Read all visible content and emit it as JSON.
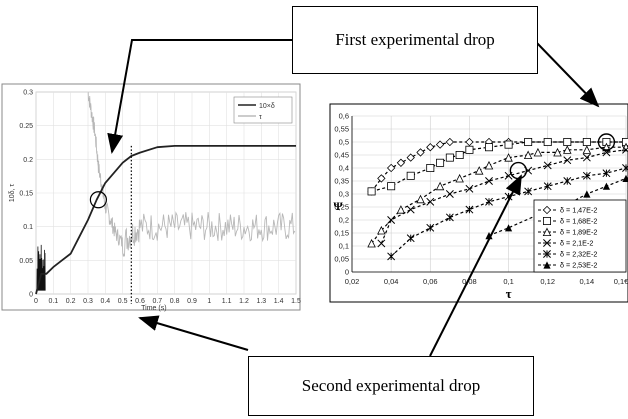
{
  "callouts": {
    "top": "First experimental drop",
    "bottom": "Second experimental drop"
  },
  "chart_data": [
    {
      "type": "line",
      "ylabel": "10δ, τ",
      "xlabel": "Time (s)",
      "xlim": [
        0,
        1.5
      ],
      "ylim": [
        0,
        0.3
      ],
      "x_ticks": [
        "0",
        "0.1",
        "0.2",
        "0.3",
        "0.4",
        "0.5",
        "0.6",
        "0.7",
        "0.8",
        "0.9",
        "1",
        "1.1",
        "1.2",
        "1.3",
        "1.4",
        "1.5"
      ],
      "y_ticks": [
        "0",
        "0.05",
        "0.1",
        "0.15",
        "0.2",
        "0.25",
        "0.3"
      ],
      "legend": [
        "10×δ",
        "τ"
      ],
      "grid": true,
      "annotations": [
        "circle near t≈0.36 s, y≈0.14",
        "dotted vertical line at t≈0.55 s"
      ],
      "series": [
        {
          "name": "10×δ",
          "x": [
            0,
            0.03,
            0.06,
            0.1,
            0.15,
            0.2,
            0.25,
            0.3,
            0.35,
            0.4,
            0.45,
            0.5,
            0.55,
            0.6,
            0.7,
            0.8,
            0.9,
            1.0,
            1.2,
            1.5
          ],
          "y": [
            0,
            0.03,
            0.03,
            0.04,
            0.05,
            0.06,
            0.085,
            0.11,
            0.14,
            0.165,
            0.18,
            0.195,
            0.205,
            0.21,
            0.218,
            0.22,
            0.22,
            0.22,
            0.22,
            0.22
          ]
        },
        {
          "name": "τ",
          "x": [
            0.3,
            0.32,
            0.34,
            0.36,
            0.38,
            0.4,
            0.43,
            0.46,
            0.5,
            0.55,
            0.6,
            0.7,
            0.8,
            0.9,
            1.0,
            1.1,
            1.2,
            1.3,
            1.4,
            1.5
          ],
          "y": [
            0.3,
            0.27,
            0.24,
            0.19,
            0.16,
            0.13,
            0.11,
            0.09,
            0.075,
            0.09,
            0.1,
            0.1,
            0.1,
            0.1,
            0.1,
            0.1,
            0.1,
            0.1,
            0.1,
            0.1
          ]
        }
      ]
    },
    {
      "type": "scatter",
      "ylabel": "Ψ",
      "xlabel": "τ",
      "xlim": [
        0.02,
        0.16
      ],
      "ylim": [
        0,
        0.6
      ],
      "x_ticks": [
        "0,02",
        "0,04",
        "0,06",
        "0,08",
        "0,1",
        "0,12",
        "0,14",
        "0,1€"
      ],
      "y_ticks": [
        "0",
        "0,05",
        "0,1",
        "0,15",
        "0,2",
        "0,25",
        "0,3",
        "0,35",
        "0,4",
        "0,45",
        "0,5",
        "0,55",
        "0,6"
      ],
      "grid": true,
      "legend_position": "bottom-right",
      "annotations": [
        "circle near τ≈0.105, Ψ≈0.39",
        "circle near τ≈0.15, Ψ≈0.5"
      ],
      "series": [
        {
          "name": "δ = 1,47E-2",
          "marker": "diamond",
          "x": [
            0.03,
            0.035,
            0.04,
            0.045,
            0.05,
            0.055,
            0.06,
            0.065,
            0.07,
            0.08,
            0.09,
            0.1,
            0.11,
            0.12,
            0.13,
            0.14,
            0.15,
            0.16
          ],
          "y": [
            0.31,
            0.36,
            0.4,
            0.42,
            0.44,
            0.46,
            0.48,
            0.49,
            0.5,
            0.5,
            0.5,
            0.5,
            0.5,
            0.5,
            0.5,
            0.5,
            0.5,
            0.5
          ]
        },
        {
          "name": "δ = 1,68E-2",
          "marker": "square",
          "x": [
            0.03,
            0.04,
            0.05,
            0.06,
            0.065,
            0.07,
            0.075,
            0.08,
            0.09,
            0.1,
            0.11,
            0.12,
            0.13,
            0.14,
            0.15,
            0.16
          ],
          "y": [
            0.31,
            0.33,
            0.37,
            0.4,
            0.42,
            0.44,
            0.45,
            0.47,
            0.48,
            0.49,
            0.5,
            0.5,
            0.5,
            0.5,
            0.5,
            0.5
          ]
        },
        {
          "name": "δ = 1,89E-2",
          "marker": "triangle",
          "x": [
            0.03,
            0.035,
            0.045,
            0.055,
            0.065,
            0.075,
            0.085,
            0.09,
            0.1,
            0.11,
            0.115,
            0.125,
            0.13,
            0.14,
            0.15,
            0.16
          ],
          "y": [
            0.11,
            0.16,
            0.24,
            0.28,
            0.33,
            0.36,
            0.39,
            0.41,
            0.44,
            0.45,
            0.46,
            0.46,
            0.47,
            0.47,
            0.48,
            0.48
          ]
        },
        {
          "name": "δ = 2,1E-2",
          "marker": "x",
          "x": [
            0.035,
            0.04,
            0.05,
            0.06,
            0.07,
            0.08,
            0.09,
            0.1,
            0.11,
            0.12,
            0.13,
            0.14,
            0.15,
            0.16
          ],
          "y": [
            0.11,
            0.2,
            0.24,
            0.27,
            0.3,
            0.32,
            0.35,
            0.37,
            0.39,
            0.41,
            0.43,
            0.44,
            0.46,
            0.47
          ]
        },
        {
          "name": "δ = 2,32E-2",
          "marker": "star",
          "x": [
            0.04,
            0.05,
            0.06,
            0.07,
            0.08,
            0.09,
            0.1,
            0.11,
            0.12,
            0.13,
            0.14,
            0.15,
            0.16
          ],
          "y": [
            0.06,
            0.13,
            0.17,
            0.21,
            0.24,
            0.27,
            0.29,
            0.31,
            0.33,
            0.35,
            0.37,
            0.38,
            0.4
          ]
        },
        {
          "name": "δ = 2,53E-2",
          "marker": "filled-triangle",
          "x": [
            0.09,
            0.1,
            0.115,
            0.13,
            0.14,
            0.15,
            0.16
          ],
          "y": [
            0.14,
            0.17,
            0.22,
            0.26,
            0.3,
            0.33,
            0.36
          ]
        }
      ]
    }
  ]
}
